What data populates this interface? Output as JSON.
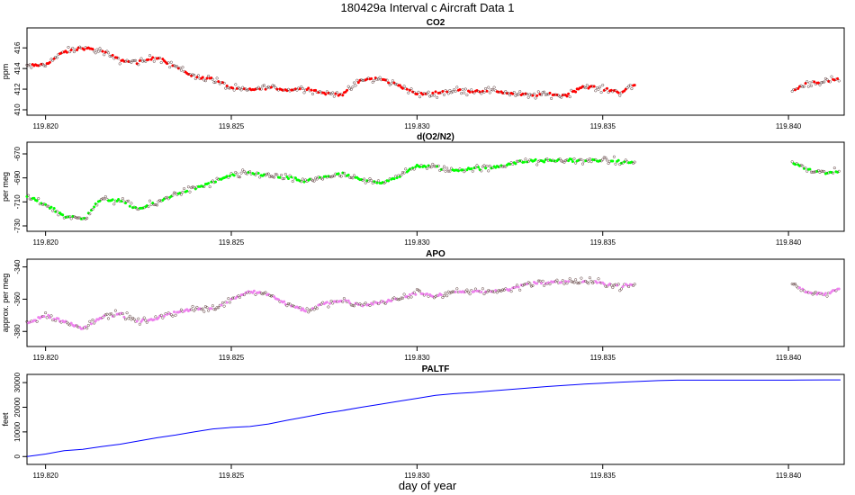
{
  "figure": {
    "title": "180429a   Interval c Aircraft Data 1",
    "xlabel": "day of year"
  },
  "chart_data": [
    {
      "type": "scatter",
      "title": "CO2",
      "ylabel": "ppm",
      "xlim": [
        119.8195,
        119.8415
      ],
      "ylim": [
        410,
        417.5
      ],
      "yticks": [
        410,
        412,
        414,
        416
      ],
      "xticks": [
        119.82,
        119.825,
        119.83,
        119.835,
        119.84
      ],
      "xtick_labels": [
        "119.820",
        "119.825",
        "119.830",
        "119.835",
        "119.840"
      ],
      "series": [
        {
          "color": "#ff0000",
          "segments": [
            {
              "x": [
                119.8195,
                119.82,
                119.8205,
                119.821,
                119.8215,
                119.822,
                119.8225,
                119.823,
                119.8235,
                119.824,
                119.8245,
                119.825,
                119.8255,
                119.826,
                119.8265,
                119.827,
                119.8275,
                119.828,
                119.8285,
                119.829,
                119.8295,
                119.83,
                119.8305,
                119.831,
                119.8315,
                119.832,
                119.8325,
                119.833,
                119.8335,
                119.834,
                119.8345,
                119.835,
                119.8355,
                119.8359
              ],
              "y": [
                414.2,
                414.4,
                415.6,
                416.0,
                415.7,
                414.8,
                414.6,
                415.1,
                414.2,
                413.2,
                413.0,
                412.1,
                411.9,
                412.2,
                411.9,
                412.1,
                411.6,
                411.5,
                412.9,
                413.0,
                412.4,
                411.5,
                411.6,
                411.9,
                411.8,
                411.9,
                411.6,
                411.4,
                411.5,
                411.4,
                412.3,
                412.0,
                411.7,
                412.5
              ]
            },
            {
              "x": [
                119.8401,
                119.8405,
                119.841,
                119.8414
              ],
              "y": [
                411.8,
                412.6,
                412.7,
                413.0
              ]
            }
          ]
        }
      ]
    },
    {
      "type": "scatter",
      "title": "d(O2/N2)",
      "ylabel": "per meg",
      "xlim": [
        119.8195,
        119.8415
      ],
      "ylim": [
        -730,
        -664
      ],
      "yticks": [
        -730,
        -710,
        -690,
        -670
      ],
      "xticks": [
        119.82,
        119.825,
        119.83,
        119.835,
        119.84
      ],
      "xtick_labels": [
        "119.820",
        "119.825",
        "119.830",
        "119.835",
        "119.840"
      ],
      "series": [
        {
          "color": "#00ff00",
          "segments": [
            {
              "x": [
                119.8195,
                119.82,
                119.8205,
                119.821,
                119.8215,
                119.822,
                119.8225,
                119.823,
                119.8235,
                119.824,
                119.8245,
                119.825,
                119.8255,
                119.826,
                119.8265,
                119.827,
                119.8275,
                119.828,
                119.8285,
                119.829,
                119.8295,
                119.83,
                119.8305,
                119.831,
                119.8315,
                119.832,
                119.8325,
                119.833,
                119.8335,
                119.834,
                119.8345,
                119.835,
                119.8355,
                119.8359
              ],
              "y": [
                -706,
                -712,
                -722,
                -724,
                -708,
                -709,
                -716,
                -711,
                -703,
                -699,
                -694,
                -688,
                -686,
                -688,
                -690,
                -693,
                -689,
                -687,
                -692,
                -694,
                -689,
                -680,
                -681,
                -684,
                -682,
                -682,
                -678,
                -676,
                -676,
                -675,
                -676,
                -675,
                -677,
                -677
              ]
            },
            {
              "x": [
                119.8401,
                119.8405,
                119.841,
                119.8414
              ],
              "y": [
                -677,
                -683,
                -686,
                -685
              ]
            }
          ]
        }
      ]
    },
    {
      "type": "scatter",
      "title": "APO",
      "ylabel": "approx. per meg",
      "xlim": [
        119.8195,
        119.8415
      ],
      "ylim": [
        -386,
        -338
      ],
      "yticks": [
        -380,
        -360,
        -340
      ],
      "xticks": [
        119.82,
        119.825,
        119.83,
        119.835,
        119.84
      ],
      "xtick_labels": [
        "119.820",
        "119.825",
        "119.830",
        "119.835",
        "119.840"
      ],
      "series": [
        {
          "color": "#ee82ee",
          "segments": [
            {
              "x": [
                119.8195,
                119.82,
                119.8205,
                119.821,
                119.8215,
                119.822,
                119.8225,
                119.823,
                119.8235,
                119.824,
                119.8245,
                119.825,
                119.8255,
                119.826,
                119.8265,
                119.827,
                119.8275,
                119.828,
                119.8285,
                119.829,
                119.8295,
                119.83,
                119.8305,
                119.831,
                119.8315,
                119.832,
                119.8325,
                119.833,
                119.8335,
                119.834,
                119.8345,
                119.835,
                119.8355,
                119.8359
              ],
              "y": [
                -375,
                -370,
                -374,
                -378,
                -371,
                -369,
                -374,
                -372,
                -368,
                -366,
                -366,
                -360,
                -355,
                -357,
                -363,
                -367,
                -363,
                -361,
                -364,
                -362,
                -360,
                -356,
                -358,
                -356,
                -355,
                -355,
                -354,
                -350,
                -350,
                -349,
                -349,
                -350,
                -352,
                -351
              ]
            },
            {
              "x": [
                119.8401,
                119.8405,
                119.841,
                119.8414
              ],
              "y": [
                -350,
                -356,
                -357,
                -353
              ]
            }
          ]
        }
      ]
    },
    {
      "type": "line",
      "title": "PALTF",
      "ylabel": "feet",
      "xlim": [
        119.8195,
        119.8415
      ],
      "ylim": [
        -1000,
        31500
      ],
      "yticks": [
        0,
        10000,
        20000,
        30000
      ],
      "xticks": [
        119.82,
        119.825,
        119.83,
        119.835,
        119.84
      ],
      "xtick_labels": [
        "119.820",
        "119.825",
        "119.830",
        "119.835",
        "119.840"
      ],
      "series": [
        {
          "color": "#0000ff",
          "x": [
            119.8195,
            119.82,
            119.8205,
            119.821,
            119.8215,
            119.822,
            119.8225,
            119.823,
            119.8235,
            119.824,
            119.8245,
            119.825,
            119.8255,
            119.826,
            119.8265,
            119.827,
            119.8275,
            119.828,
            119.8285,
            119.829,
            119.8295,
            119.83,
            119.8305,
            119.831,
            119.8315,
            119.832,
            119.8325,
            119.833,
            119.8335,
            119.834,
            119.8345,
            119.835,
            119.8355,
            119.836,
            119.8365,
            119.837,
            119.838,
            119.839,
            119.84,
            119.841,
            119.8414
          ],
          "y": [
            0,
            1000,
            2400,
            2900,
            4000,
            5000,
            6300,
            7600,
            8700,
            10000,
            11200,
            11800,
            12200,
            13200,
            14700,
            16100,
            17500,
            18700,
            20000,
            21200,
            22400,
            23600,
            24800,
            25500,
            26000,
            26600,
            27200,
            27800,
            28400,
            28900,
            29400,
            29800,
            30200,
            30500,
            30800,
            31000,
            31000,
            31000,
            31000,
            31100,
            31100
          ]
        }
      ]
    }
  ]
}
